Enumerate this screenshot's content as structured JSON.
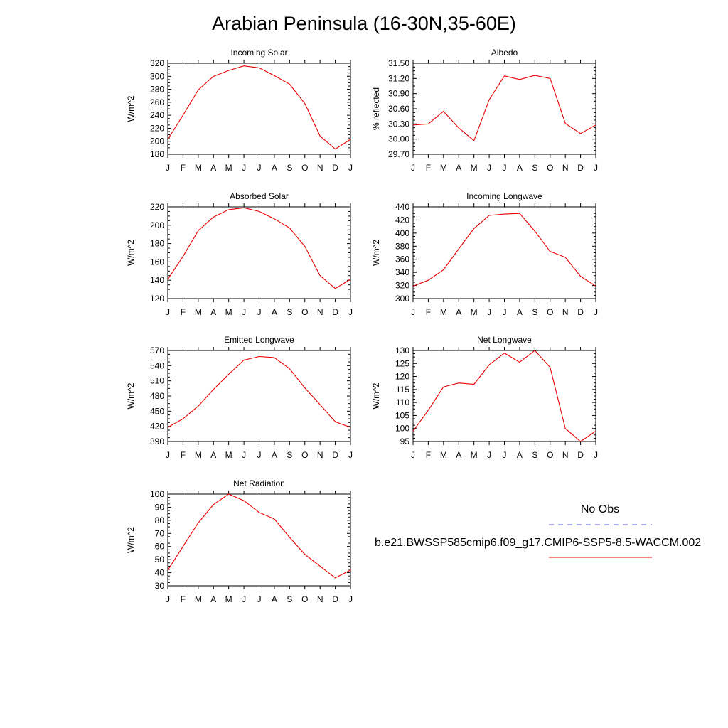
{
  "figure": {
    "title": "Arabian Peninsula (16-30N,35-60E)"
  },
  "legend": {
    "obs_label": "No Obs",
    "model_label": "b.e21.BWSSP585cmip6.f09_g17.CMIP6-SSP5-8.5-WACCM.002",
    "obs_color": "#5a5ae6",
    "model_color": "#e60000"
  },
  "chart_data": [
    {
      "type": "line",
      "title": "Incoming Solar",
      "ylabel": "W/m^2",
      "categories": [
        "J",
        "F",
        "M",
        "A",
        "M",
        "J",
        "J",
        "A",
        "S",
        "O",
        "N",
        "D",
        "J"
      ],
      "ylim": [
        180,
        320
      ],
      "yticks": [
        "180",
        "200",
        "220",
        "240",
        "260",
        "280",
        "300",
        "320"
      ],
      "series": [
        {
          "values": [
            203,
            240,
            279,
            300,
            309,
            316,
            313,
            301,
            288,
            258,
            208,
            188,
            203
          ]
        }
      ]
    },
    {
      "type": "line",
      "title": "Albedo",
      "ylabel": "% reflected",
      "categories": [
        "J",
        "F",
        "M",
        "A",
        "M",
        "J",
        "J",
        "A",
        "S",
        "O",
        "N",
        "D",
        "J"
      ],
      "ylim": [
        29.7,
        31.5
      ],
      "yticks": [
        "29.70",
        "30.00",
        "30.30",
        "30.60",
        "30.90",
        "31.20",
        "31.50"
      ],
      "series": [
        {
          "values": [
            30.28,
            30.3,
            30.55,
            30.22,
            29.97,
            30.78,
            31.25,
            31.18,
            31.26,
            31.2,
            30.31,
            30.11,
            30.28
          ]
        }
      ]
    },
    {
      "type": "line",
      "title": "Absorbed Solar",
      "ylabel": "W/m^2",
      "categories": [
        "J",
        "F",
        "M",
        "A",
        "M",
        "J",
        "J",
        "A",
        "S",
        "O",
        "N",
        "D",
        "J"
      ],
      "ylim": [
        120,
        220
      ],
      "yticks": [
        "120",
        "140",
        "160",
        "180",
        "200",
        "220"
      ],
      "series": [
        {
          "values": [
            141,
            166,
            194,
            209,
            217,
            219,
            215,
            207,
            197,
            177,
            145,
            131,
            141
          ]
        }
      ]
    },
    {
      "type": "line",
      "title": "Incoming Longwave",
      "ylabel": "W/m^2",
      "categories": [
        "J",
        "F",
        "M",
        "A",
        "M",
        "J",
        "J",
        "A",
        "S",
        "O",
        "N",
        "D",
        "J"
      ],
      "ylim": [
        300,
        440
      ],
      "yticks": [
        "300",
        "320",
        "340",
        "360",
        "380",
        "400",
        "420",
        "440"
      ],
      "series": [
        {
          "values": [
            319,
            328,
            344,
            376,
            407,
            427,
            429,
            430,
            403,
            372,
            363,
            334,
            319
          ]
        }
      ]
    },
    {
      "type": "line",
      "title": "Emitted Longwave",
      "ylabel": "W/m^2",
      "categories": [
        "J",
        "F",
        "M",
        "A",
        "M",
        "J",
        "J",
        "A",
        "S",
        "O",
        "N",
        "D",
        "J"
      ],
      "ylim": [
        390,
        570
      ],
      "yticks": [
        "390",
        "420",
        "450",
        "480",
        "510",
        "540",
        "570"
      ],
      "series": [
        {
          "values": [
            418,
            435,
            460,
            493,
            523,
            551,
            558,
            556,
            534,
            496,
            463,
            429,
            418
          ]
        }
      ]
    },
    {
      "type": "line",
      "title": "Net Longwave",
      "ylabel": "W/m^2",
      "categories": [
        "J",
        "F",
        "M",
        "A",
        "M",
        "J",
        "J",
        "A",
        "S",
        "O",
        "N",
        "D",
        "J"
      ],
      "ylim": [
        95,
        130
      ],
      "yticks": [
        "95",
        "100",
        "105",
        "110",
        "115",
        "120",
        "125",
        "130"
      ],
      "series": [
        {
          "values": [
            99,
            107,
            116,
            117.5,
            117,
            124.5,
            129,
            125.5,
            130,
            123.5,
            100,
            95,
            99
          ]
        }
      ]
    },
    {
      "type": "line",
      "title": "Net Radiation",
      "ylabel": "W/m^2",
      "categories": [
        "J",
        "F",
        "M",
        "A",
        "M",
        "J",
        "J",
        "A",
        "S",
        "O",
        "N",
        "D",
        "J"
      ],
      "ylim": [
        30,
        100
      ],
      "yticks": [
        "30",
        "40",
        "50",
        "60",
        "70",
        "80",
        "90",
        "100"
      ],
      "series": [
        {
          "values": [
            42,
            60,
            78,
            92,
            100,
            95,
            86,
            81,
            67,
            54,
            45,
            36,
            42
          ]
        }
      ]
    }
  ]
}
